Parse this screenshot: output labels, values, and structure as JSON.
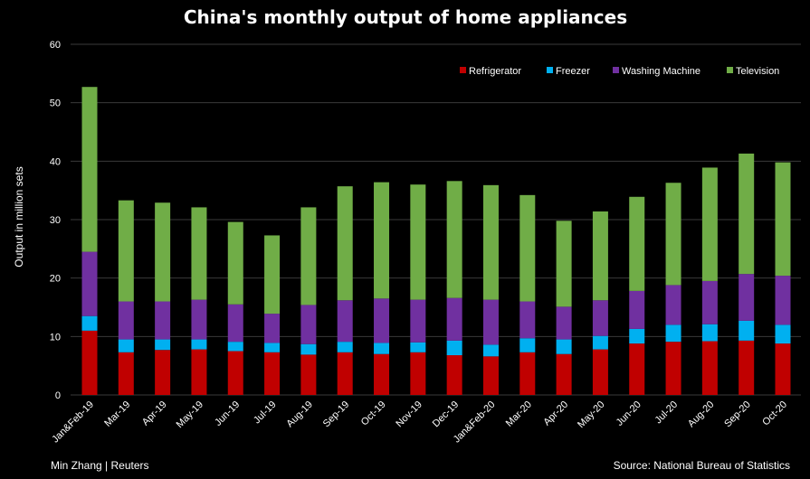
{
  "chart_data": {
    "type": "bar",
    "stacked": true,
    "title": "China's monthly output of home appliances",
    "ylabel": "Output in million sets",
    "xlabel": "",
    "ylim": [
      0,
      60
    ],
    "yticks": [
      0,
      10,
      20,
      30,
      40,
      50,
      60
    ],
    "grid": true,
    "legend_position": "top-right",
    "categories": [
      "Jan&Feb-19",
      "Mar-19",
      "Apr-19",
      "May-19",
      "Jun-19",
      "Jul-19",
      "Aug-19",
      "Sep-19",
      "Oct-19",
      "Nov-19",
      "Dec-19",
      "Jan&Feb-20",
      "Mar-20",
      "Apr-20",
      "May-20",
      "Jun-20",
      "Jul-20",
      "Aug-20",
      "Sep-20",
      "Oct-20"
    ],
    "series": [
      {
        "name": "Refrigerator",
        "color": "#c00000",
        "values": [
          11.0,
          7.3,
          7.7,
          7.8,
          7.5,
          7.3,
          6.9,
          7.3,
          7.0,
          7.3,
          6.8,
          6.6,
          7.3,
          7.0,
          7.8,
          8.8,
          9.1,
          9.2,
          9.3,
          8.8
        ]
      },
      {
        "name": "Freezer",
        "color": "#00b0f0",
        "values": [
          2.5,
          2.2,
          1.8,
          1.7,
          1.6,
          1.6,
          1.8,
          1.8,
          1.9,
          1.7,
          2.5,
          2.0,
          2.4,
          2.5,
          2.3,
          2.5,
          2.9,
          2.9,
          3.4,
          3.2
        ]
      },
      {
        "name": "Washing Machine",
        "color": "#7030a0",
        "values": [
          11.0,
          6.5,
          6.5,
          6.8,
          6.4,
          5.0,
          6.7,
          7.1,
          7.6,
          7.3,
          7.3,
          7.7,
          6.3,
          5.6,
          6.1,
          6.5,
          6.8,
          7.4,
          8.0,
          8.4
        ]
      },
      {
        "name": "Television",
        "color": "#70ad47",
        "values": [
          28.2,
          17.3,
          16.9,
          15.8,
          14.1,
          13.4,
          16.7,
          19.5,
          19.9,
          19.7,
          20.0,
          19.6,
          18.2,
          14.7,
          15.2,
          16.1,
          17.5,
          19.4,
          20.6,
          19.4
        ]
      }
    ]
  },
  "footer": {
    "left": "Min Zhang | Reuters",
    "right": "Source: National Bureau of Statistics"
  }
}
